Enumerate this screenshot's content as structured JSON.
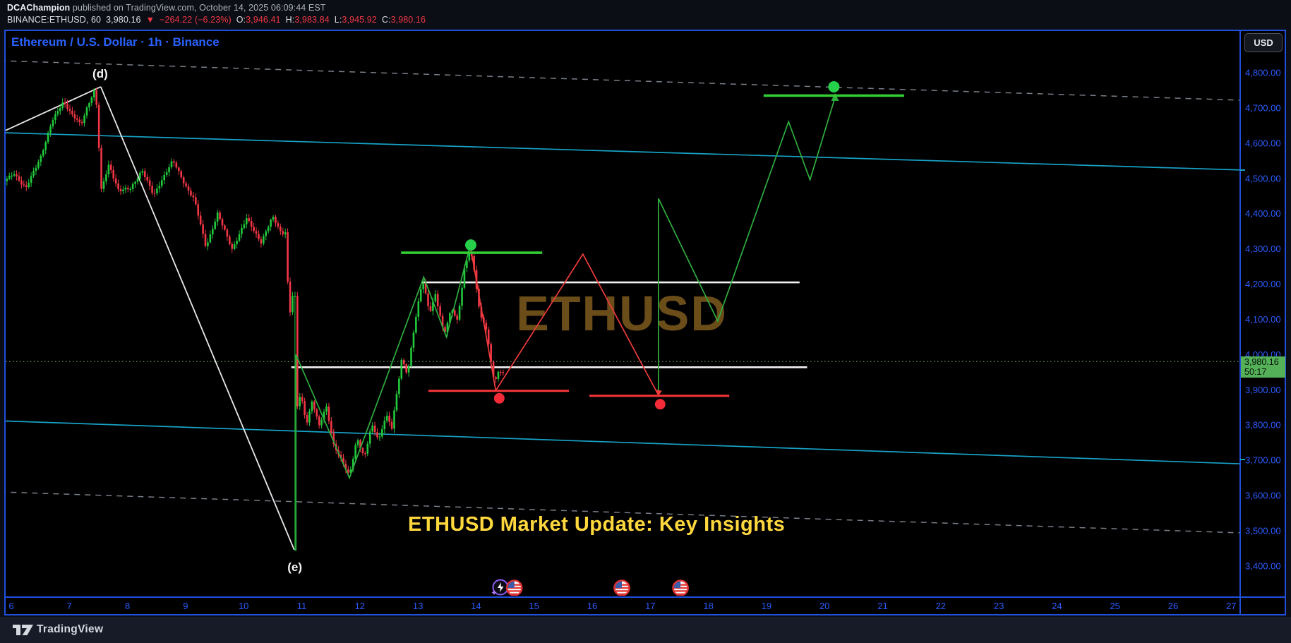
{
  "header": {
    "author": "DCAChampion",
    "published": " published on TradingView.com, October 14, 2025 06:09:44 EST",
    "quote": {
      "symbol": "BINANCE:ETHUSD, 60",
      "last": "3,980.16",
      "arrow": "▼",
      "change": "−264.22 (−6.23%)",
      "o_label": "O:",
      "o": "3,946.41",
      "h_label": "H:",
      "h": "3,983.84",
      "l_label": "L:",
      "l": "3,945.92",
      "c_label": "C:",
      "c": "3,980.16"
    }
  },
  "chart": {
    "title": "Ethereum / U.S. Dollar · 1h · Binance",
    "currency_button": "USD",
    "watermark": "ETHUSD",
    "caption": "ETHUSD Market Update: Key Insights",
    "price_flag": {
      "price": "3,980.16",
      "countdown": "50:17"
    }
  },
  "footer": {
    "brand": "TradingView"
  },
  "colors": {
    "accent_blue": "#2b5cff",
    "candle_up": "#21c93c",
    "candle_down": "#f23645",
    "zig_green": "#2fae3e",
    "zig_red": "#ef3c3c",
    "level_green": "#33cc33",
    "level_red": "#f63538",
    "level_white": "#f2f2f2",
    "cyan": "#17a2c6",
    "dashed_gray": "#787f8a",
    "dotted_price": "#669b66",
    "dot_green": "#27d04a",
    "dot_red": "#f22b36",
    "yellow": "#ffd83d",
    "watermark": "#6a4d18"
  },
  "chart_data": {
    "type": "candlestick",
    "title": "Ethereum / U.S. Dollar · 1h · Binance",
    "symbol": "ETHUSD",
    "timeframe": "1h",
    "current_price": 3980.16,
    "countdown": "50:17",
    "x_axis": {
      "unit": "day of month (October 2025)",
      "ticks": [
        {
          "v": 6,
          "label": "6"
        },
        {
          "v": 7,
          "label": "7"
        },
        {
          "v": 8,
          "label": "8"
        },
        {
          "v": 9,
          "label": "9"
        },
        {
          "v": 10,
          "label": "10"
        },
        {
          "v": 11,
          "label": "11"
        },
        {
          "v": 12,
          "label": "12"
        },
        {
          "v": 13,
          "label": "13"
        },
        {
          "v": 14,
          "label": "14"
        },
        {
          "v": 15,
          "label": "15"
        },
        {
          "v": 16,
          "label": "16"
        },
        {
          "v": 17,
          "label": "17"
        },
        {
          "v": 18,
          "label": "18"
        },
        {
          "v": 19,
          "label": "19"
        },
        {
          "v": 20,
          "label": "20"
        },
        {
          "v": 21,
          "label": "21"
        },
        {
          "v": 22,
          "label": "22"
        },
        {
          "v": 23,
          "label": "23"
        },
        {
          "v": 24,
          "label": "24"
        },
        {
          "v": 25,
          "label": "25"
        },
        {
          "v": 26,
          "label": "26"
        },
        {
          "v": 27,
          "label": "27"
        }
      ]
    },
    "y_axis": {
      "unit": "USD",
      "ticks": [
        {
          "v": 4800,
          "label": "4,800.00"
        },
        {
          "v": 4700,
          "label": "4,700.00"
        },
        {
          "v": 4600,
          "label": "4,600.00"
        },
        {
          "v": 4500,
          "label": "4,500.00"
        },
        {
          "v": 4400,
          "label": "4,400.00"
        },
        {
          "v": 4300,
          "label": "4,300.00"
        },
        {
          "v": 4200,
          "label": "4,200.00"
        },
        {
          "v": 4100,
          "label": "4,100.00"
        },
        {
          "v": 4000,
          "label": "4,000.00"
        },
        {
          "v": 3900,
          "label": "3,900.00"
        },
        {
          "v": 3800,
          "label": "3,800.00"
        },
        {
          "v": 3700,
          "label": "3,700.00"
        },
        {
          "v": 3600,
          "label": "3,600.00"
        },
        {
          "v": 3500,
          "label": "3,500.00"
        },
        {
          "v": 3400,
          "label": "3,400.00"
        }
      ]
    },
    "candles": {
      "start_day": 5.8,
      "end_day": 14.5,
      "interval_days": 0.0416667,
      "flash_wick": {
        "day": 10.9,
        "low": 3443
      },
      "path_anchors": [
        [
          5.8,
          4480
        ],
        [
          6.05,
          4515
        ],
        [
          6.25,
          4470
        ],
        [
          6.5,
          4560
        ],
        [
          6.7,
          4660
        ],
        [
          6.9,
          4720
        ],
        [
          7.05,
          4680
        ],
        [
          7.2,
          4650
        ],
        [
          7.32,
          4710
        ],
        [
          7.45,
          4758
        ],
        [
          7.55,
          4465
        ],
        [
          7.68,
          4540
        ],
        [
          7.85,
          4465
        ],
        [
          8.05,
          4470
        ],
        [
          8.25,
          4525
        ],
        [
          8.45,
          4450
        ],
        [
          8.6,
          4500
        ],
        [
          8.78,
          4550
        ],
        [
          9.0,
          4480
        ],
        [
          9.15,
          4440
        ],
        [
          9.35,
          4305
        ],
        [
          9.55,
          4400
        ],
        [
          9.8,
          4300
        ],
        [
          10.05,
          4385
        ],
        [
          10.3,
          4320
        ],
        [
          10.5,
          4390
        ],
        [
          10.65,
          4345
        ],
        [
          10.73,
          4350
        ],
        [
          10.78,
          4095
        ],
        [
          10.84,
          4175
        ],
        [
          10.9,
          3835
        ],
        [
          10.98,
          3890
        ],
        [
          11.08,
          3805
        ],
        [
          11.18,
          3870
        ],
        [
          11.3,
          3795
        ],
        [
          11.42,
          3855
        ],
        [
          11.55,
          3745
        ],
        [
          11.68,
          3700
        ],
        [
          11.82,
          3655
        ],
        [
          11.95,
          3765
        ],
        [
          12.08,
          3705
        ],
        [
          12.2,
          3800
        ],
        [
          12.33,
          3760
        ],
        [
          12.45,
          3830
        ],
        [
          12.55,
          3790
        ],
        [
          12.65,
          3905
        ],
        [
          12.72,
          3990
        ],
        [
          12.82,
          3945
        ],
        [
          12.95,
          4090
        ],
        [
          13.08,
          4215
        ],
        [
          13.2,
          4120
        ],
        [
          13.3,
          4170
        ],
        [
          13.45,
          4055
        ],
        [
          13.58,
          4135
        ],
        [
          13.68,
          4095
        ],
        [
          13.8,
          4240
        ],
        [
          13.9,
          4300
        ],
        [
          13.98,
          4230
        ],
        [
          14.07,
          4110
        ],
        [
          14.16,
          4085
        ],
        [
          14.24,
          4000
        ],
        [
          14.32,
          3915
        ],
        [
          14.4,
          3965
        ],
        [
          14.46,
          3940
        ],
        [
          14.5,
          3980
        ]
      ]
    },
    "overlays": {
      "dashed_gray_lines": [
        [
          [
            5.81,
            4834
          ],
          [
            27.16,
            4722
          ]
        ],
        [
          [
            5.81,
            3610
          ],
          [
            27.16,
            3494
          ]
        ]
      ],
      "cyan_channel_lines": [
        [
          [
            5.81,
            4630
          ],
          [
            27.16,
            4524
          ]
        ],
        [
          [
            5.81,
            3812
          ],
          [
            27.16,
            3690
          ]
        ]
      ],
      "white_diagonals": [
        [
          [
            5.82,
            4630
          ],
          [
            7.54,
            4760
          ]
        ],
        [
          [
            7.54,
            4760
          ],
          [
            10.87,
            3446
          ]
        ]
      ],
      "white_levels": [
        {
          "price": 4205,
          "from": 13.06,
          "to": 19.57
        },
        {
          "price": 3964,
          "from": 10.82,
          "to": 19.7
        }
      ],
      "green_levels": [
        {
          "price": 4289,
          "from": 12.71,
          "to": 15.14
        },
        {
          "price": 4735,
          "from": 18.95,
          "to": 21.37
        }
      ],
      "red_levels": [
        {
          "price": 3897,
          "from": 13.18,
          "to": 15.6
        },
        {
          "price": 3883,
          "from": 15.95,
          "to": 18.36
        }
      ],
      "green_zigzag": [
        [
          10.9,
          3443
        ],
        [
          10.9,
          4000
        ],
        [
          11.82,
          3650
        ],
        [
          13.1,
          4220
        ],
        [
          13.49,
          4050
        ],
        [
          13.9,
          4310
        ]
      ],
      "red_zigzag": [
        [
          13.9,
          4310
        ],
        [
          14.34,
          3898
        ],
        [
          15.84,
          4285
        ],
        [
          17.14,
          3885
        ]
      ],
      "green_projection": [
        [
          17.14,
          3885
        ],
        [
          17.14,
          4443
        ],
        [
          18.16,
          4095
        ],
        [
          19.38,
          4661
        ],
        [
          19.75,
          4496
        ],
        [
          20.18,
          4730
        ]
      ],
      "green_dots": [
        [
          13.91,
          4311
        ],
        [
          20.16,
          4760
        ]
      ],
      "red_dots": [
        [
          14.4,
          3876
        ],
        [
          17.17,
          3859
        ]
      ],
      "annotations": [
        {
          "text": "(d)",
          "day": 7.53,
          "price": 4798
        },
        {
          "text": "(e)",
          "day": 10.88,
          "price": 3398
        }
      ]
    },
    "event_icons": {
      "flag_days": [
        14.66,
        16.51,
        17.52
      ],
      "bolt_day": 14.42
    }
  }
}
